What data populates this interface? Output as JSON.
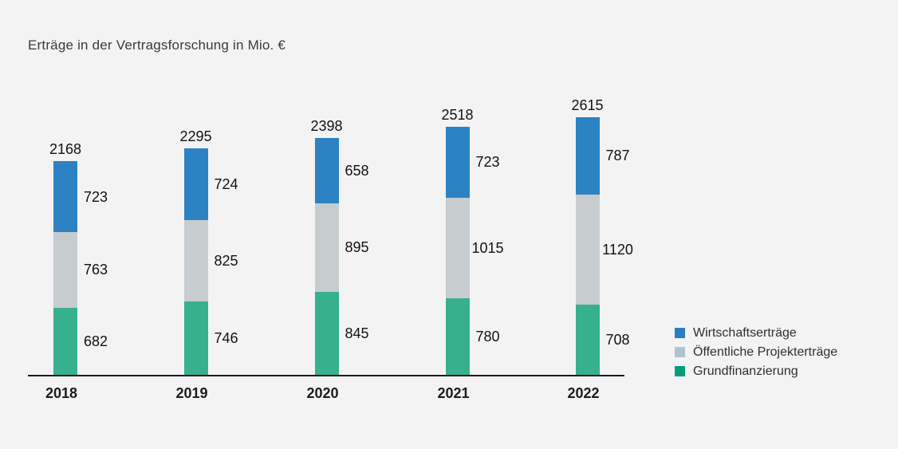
{
  "title": "Erträge in der Vertragsforschung in Mio. €",
  "colors": {
    "background": "#f3f3f3",
    "axis": "#1a1a1a",
    "bar_blue": "#2c82c3",
    "bar_gray": "#c7cccf",
    "bar_green": "#36b08e"
  },
  "chart_data": {
    "type": "bar",
    "stacked": true,
    "title": "Erträge in der Vertragsforschung in Mio. €",
    "xlabel": "",
    "ylabel": "Mio. €",
    "ylim": [
      0,
      2700
    ],
    "grid": false,
    "legend_position": "right",
    "categories": [
      "2018",
      "2019",
      "2020",
      "2021",
      "2022"
    ],
    "series": [
      {
        "name": "Grundfinanzierung",
        "color": "#36b08e",
        "values": [
          682,
          746,
          845,
          780,
          708
        ]
      },
      {
        "name": "Öffentliche Projekterträge",
        "color": "#c7cccf",
        "values": [
          763,
          825,
          895,
          1015,
          1120
        ]
      },
      {
        "name": "Wirtschaftserträge",
        "color": "#2c82c3",
        "values": [
          723,
          724,
          658,
          723,
          787
        ]
      }
    ],
    "totals": [
      2168,
      2295,
      2398,
      2518,
      2615
    ]
  },
  "legend": {
    "items": [
      {
        "label": "Wirtschaftserträge",
        "color": "#2980c0"
      },
      {
        "label": "Öffentliche Projekterträge",
        "color": "#b2c3cf"
      },
      {
        "label": "Grundfinanzierung",
        "color": "#069d79"
      }
    ]
  }
}
